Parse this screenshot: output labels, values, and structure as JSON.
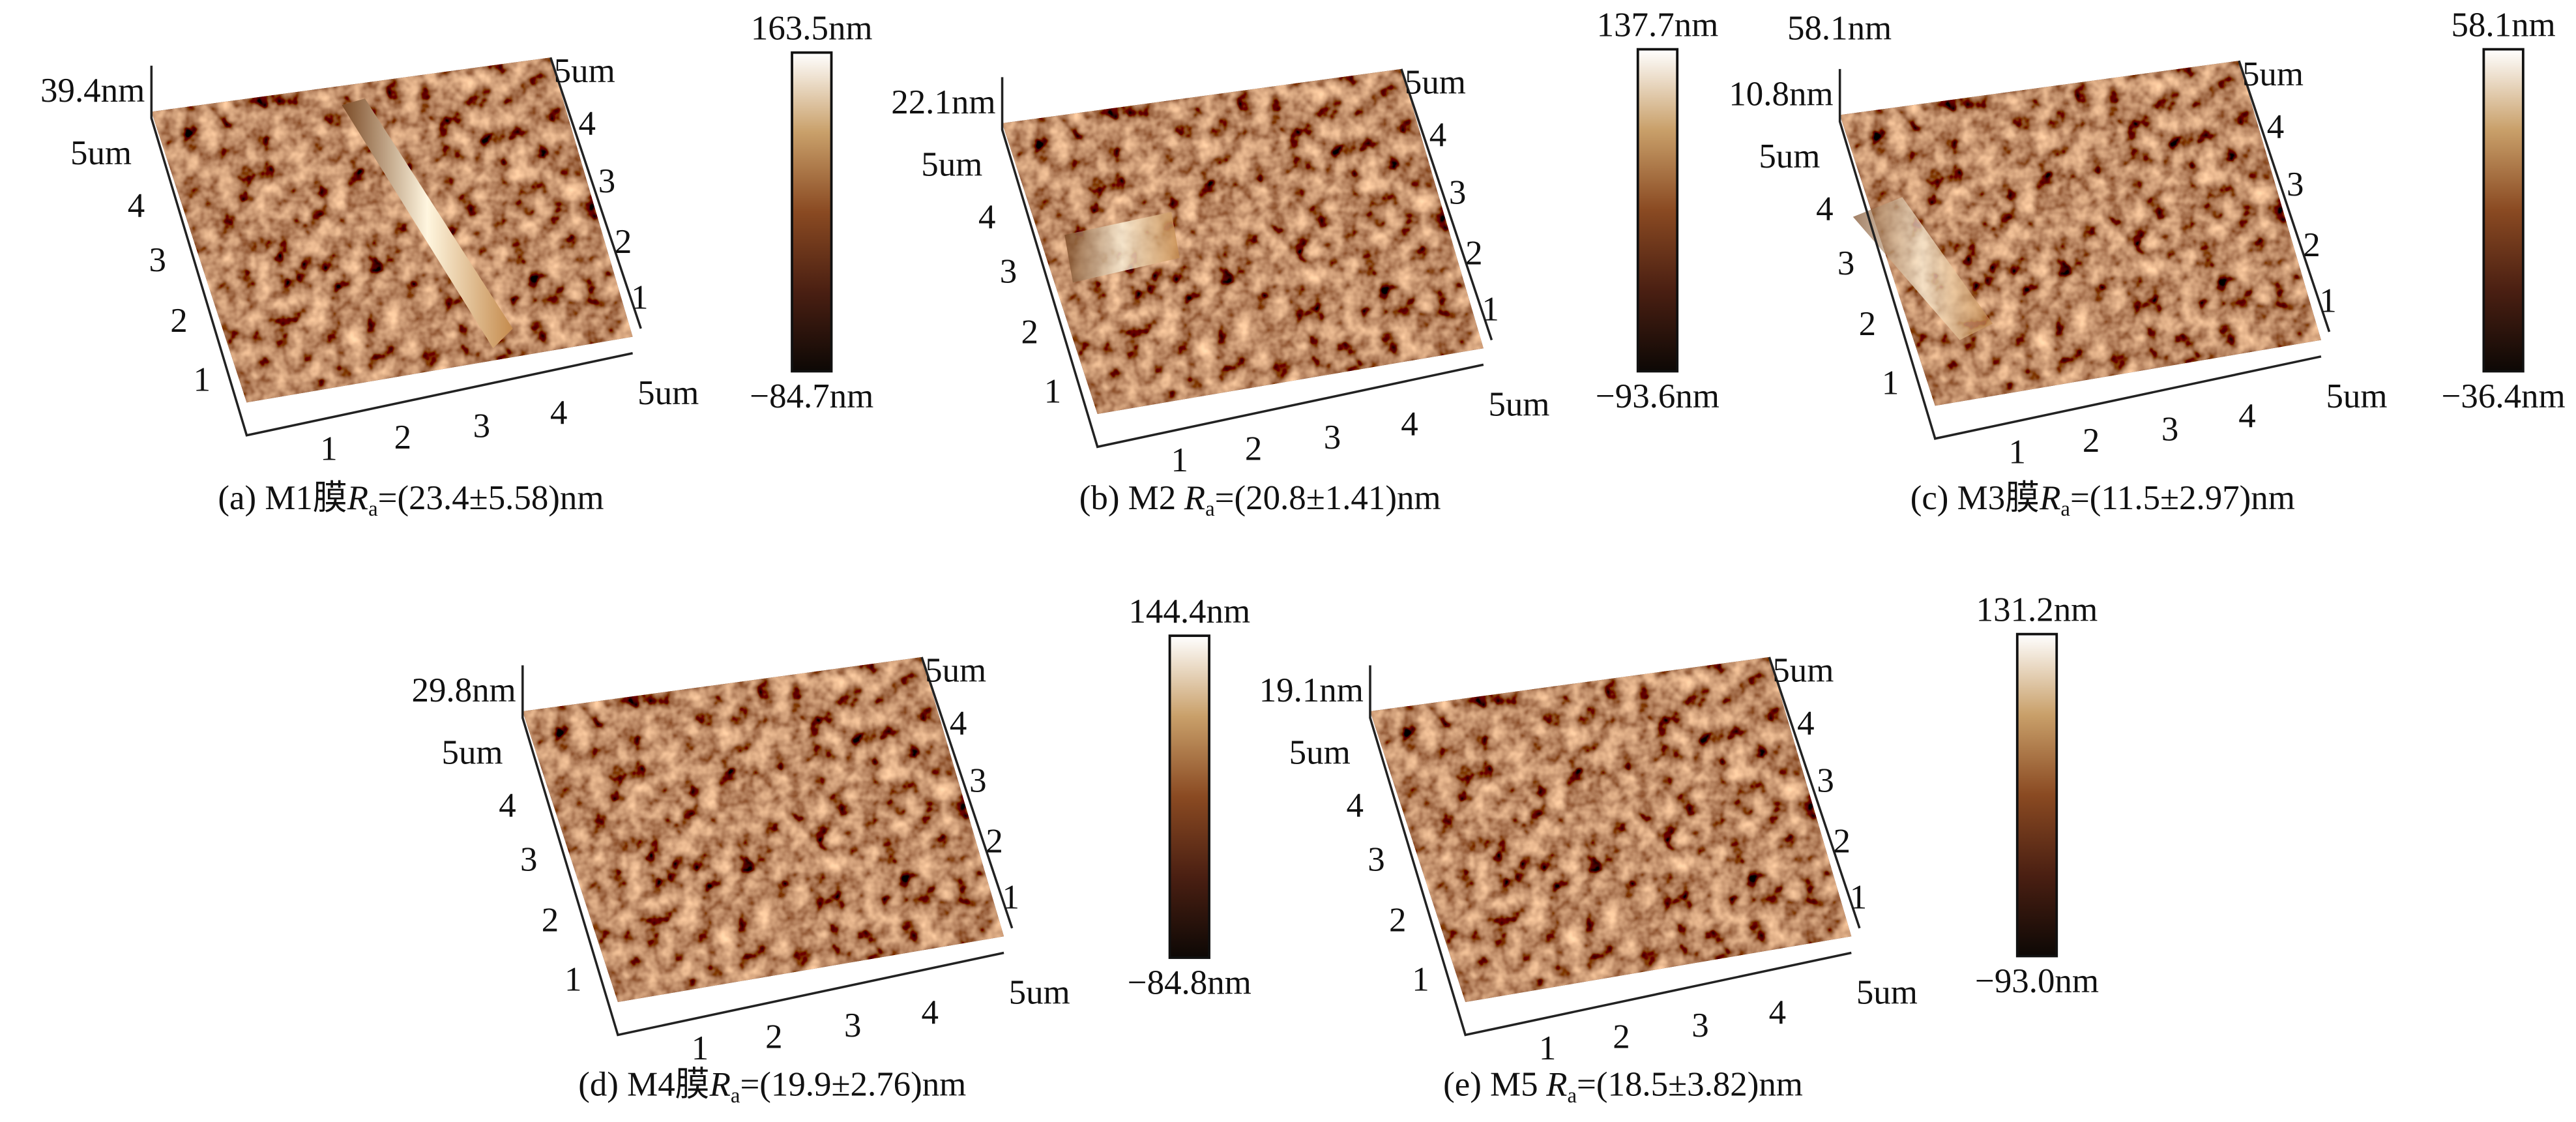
{
  "panels": [
    {
      "label": "(a) M1膜",
      "ra_symbol": "R",
      "ra_sub": "a",
      "ra_value": "=(23.4±5.58)nm",
      "z_label": "39.4nm",
      "bar_max": "163.5nm",
      "bar_min": "−84.7nm",
      "left_ticks": [
        "5um",
        "4",
        "3",
        "2",
        "1"
      ],
      "bottom_ticks": [
        "1",
        "2",
        "3",
        "4",
        "5um"
      ],
      "right_ticks": [
        "5um",
        "4",
        "3",
        "2",
        "1"
      ]
    },
    {
      "label": "(b) M2",
      "ra_symbol": "R",
      "ra_sub": "a",
      "ra_value": "=(20.8±1.41)nm",
      "z_label": "22.1nm",
      "bar_max": "137.7nm",
      "bar_min": "−93.6nm",
      "left_ticks": [
        "5um",
        "4",
        "3",
        "2",
        "1"
      ],
      "bottom_ticks": [
        "1",
        "2",
        "3",
        "4",
        "5um"
      ],
      "right_ticks": [
        "5um",
        "4",
        "3",
        "2",
        "1"
      ]
    },
    {
      "label": "(c) M3膜",
      "ra_symbol": "R",
      "ra_sub": "a",
      "ra_value": "=(11.5±2.97)nm",
      "z_label": "10.8nm",
      "z_top": "58.1nm",
      "bar_max": "58.1nm",
      "bar_min": "−36.4nm",
      "left_ticks": [
        "5um",
        "4",
        "3",
        "2",
        "1"
      ],
      "bottom_ticks": [
        "1",
        "2",
        "3",
        "4",
        "5um"
      ],
      "right_ticks": [
        "5um",
        "4",
        "3",
        "2",
        "1"
      ]
    },
    {
      "label": "(d) M4膜",
      "ra_symbol": "R",
      "ra_sub": "a",
      "ra_value": "=(19.9±2.76)nm",
      "z_label": "29.8nm",
      "bar_max": "144.4nm",
      "bar_min": "−84.8nm",
      "left_ticks": [
        "5um",
        "4",
        "3",
        "2",
        "1"
      ],
      "bottom_ticks": [
        "1",
        "2",
        "3",
        "4",
        "5um"
      ],
      "right_ticks": [
        "5um",
        "4",
        "3",
        "2",
        "1"
      ]
    },
    {
      "label": "(e) M5",
      "ra_symbol": "R",
      "ra_sub": "a",
      "ra_value": "=(18.5±3.82)nm",
      "z_label": "19.1nm",
      "bar_max": "131.2nm",
      "bar_min": "−93.0nm",
      "left_ticks": [
        "5um",
        "4",
        "3",
        "2",
        "1"
      ],
      "bottom_ticks": [
        "1",
        "2",
        "3",
        "4",
        "5um"
      ],
      "right_ticks": [
        "5um",
        "4",
        "3",
        "2",
        "1"
      ]
    }
  ]
}
